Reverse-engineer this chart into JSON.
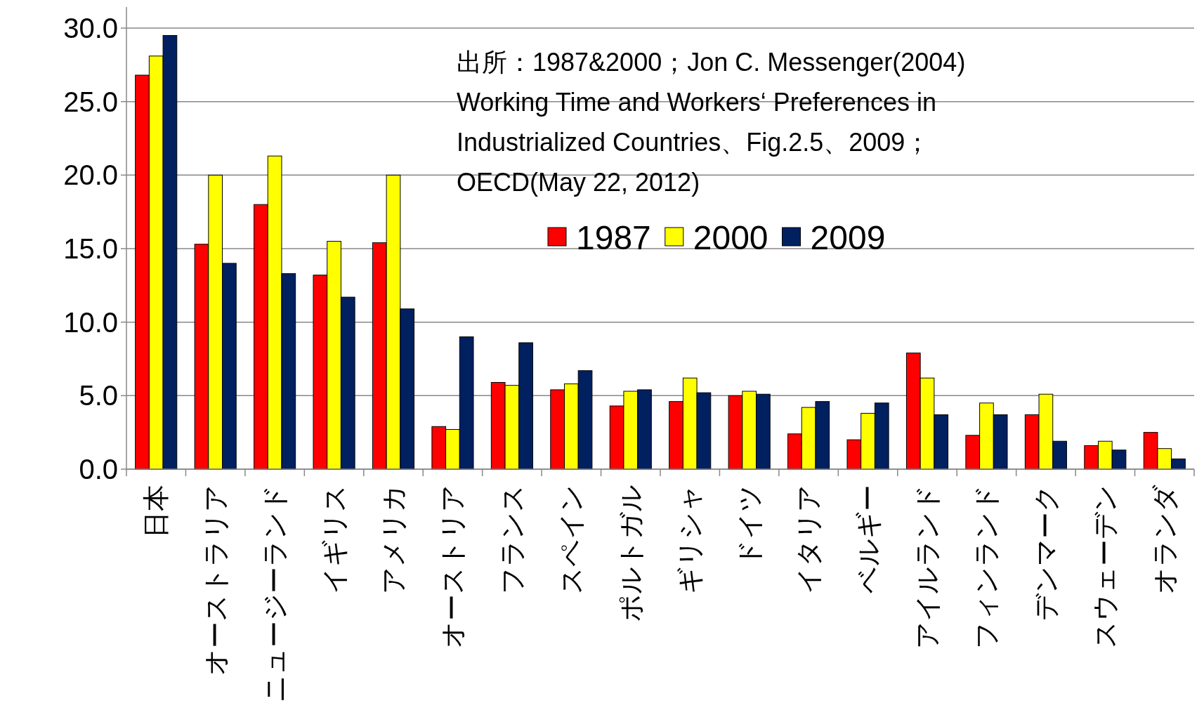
{
  "chart_data": {
    "type": "bar",
    "categories": [
      "日本",
      "オーストラリア",
      "ニュージーランド",
      "イギリス",
      "アメリカ",
      "オーストリア",
      "フランス",
      "スペイン",
      "ポルトガル",
      "ギリシャ",
      "ドイツ",
      "イタリア",
      "ベルギー",
      "アイルランド",
      "フィンランド",
      "デンマーク",
      "スウェーデン",
      "オランダ"
    ],
    "series": [
      {
        "name": "1987",
        "color": "#ff0000",
        "values": [
          26.8,
          15.3,
          18.0,
          13.2,
          15.4,
          2.9,
          5.9,
          5.4,
          4.3,
          4.6,
          5.0,
          2.4,
          2.0,
          7.9,
          2.3,
          3.7,
          1.6,
          2.5
        ]
      },
      {
        "name": "2000",
        "color": "#ffff00",
        "values": [
          28.1,
          20.0,
          21.3,
          15.5,
          20.0,
          2.7,
          5.7,
          5.8,
          5.3,
          6.2,
          5.3,
          4.2,
          3.8,
          6.2,
          4.5,
          5.1,
          1.9,
          1.4
        ]
      },
      {
        "name": "2009",
        "color": "#002060",
        "values": [
          29.5,
          14.0,
          13.3,
          11.7,
          10.9,
          9.0,
          8.6,
          6.7,
          5.4,
          5.2,
          5.1,
          4.6,
          4.5,
          3.7,
          3.7,
          1.9,
          1.3,
          0.7
        ]
      }
    ],
    "ylim": [
      0,
      30
    ],
    "yticks": [
      {
        "value": 0,
        "label": "0.0"
      },
      {
        "value": 5,
        "label": "5.0"
      },
      {
        "value": 10,
        "label": "10.0"
      },
      {
        "value": 15,
        "label": "15.0"
      },
      {
        "value": 20,
        "label": "20.0"
      },
      {
        "value": 25,
        "label": "25.0"
      },
      {
        "value": 30,
        "label": "30.0"
      }
    ],
    "grid": "y",
    "legend": "top",
    "annotations": [
      "出所：1987&2000；Jon C. Messenger(2004)",
      "Working Time and Workers‘ Preferences in",
      "Industrialized Countries、Fig.2.5、2009；",
      "OECD(May 22, 2012)"
    ]
  }
}
